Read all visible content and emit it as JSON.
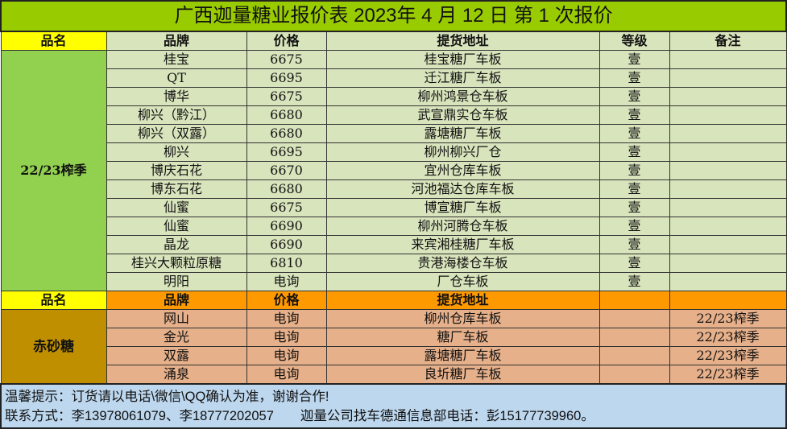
{
  "title": "广西迦量糖业报价表 2023年 4 月 12 日 第 1 次报价",
  "header": {
    "name": "品名",
    "brand": "品牌",
    "price": "价格",
    "address": "提货地址",
    "grade": "等级",
    "note": "备注"
  },
  "group1": {
    "category": "22/23榨季",
    "rows": [
      [
        "桂宝",
        "6675",
        "桂宝糖厂车板",
        "壹",
        ""
      ],
      [
        "QT",
        "6695",
        "迁江糖厂车板",
        "壹",
        ""
      ],
      [
        "博华",
        "6675",
        "柳州鸿景仓车板",
        "壹",
        ""
      ],
      [
        "柳兴（黔江）",
        "6680",
        "武宣鼎实仓车板",
        "壹",
        ""
      ],
      [
        "柳兴（双露）",
        "6680",
        "露塘糖厂车板",
        "壹",
        ""
      ],
      [
        "柳兴",
        "6695",
        "柳州柳兴厂仓",
        "壹",
        ""
      ],
      [
        "博庆石花",
        "6670",
        "宜州仓库车板",
        "壹",
        ""
      ],
      [
        "博东石花",
        "6680",
        "河池福达仓库车板",
        "壹",
        ""
      ],
      [
        "仙蜜",
        "6675",
        "博宣糖厂车板",
        "壹",
        ""
      ],
      [
        "仙蜜",
        "6690",
        "柳州河腾仓车板",
        "壹",
        ""
      ],
      [
        "晶龙",
        "6690",
        "来宾湘桂糖厂车板",
        "壹",
        ""
      ],
      [
        "桂兴大颗粒原糖",
        "6810",
        "贵港海楼仓车板",
        "壹",
        ""
      ],
      [
        "明阳",
        "电询",
        "厂仓车板",
        "壹",
        ""
      ]
    ]
  },
  "header2": {
    "name": "品名",
    "brand": "品牌",
    "price": "价格",
    "address": "提货地址"
  },
  "group2": {
    "category": "赤砂糖",
    "rows": [
      [
        "网山",
        "电询",
        "柳州仓库车板",
        "",
        "22/23榨季"
      ],
      [
        "金光",
        "电询",
        "糖厂车板",
        "",
        "22/23榨季"
      ],
      [
        "双露",
        "电询",
        "露塘糖厂车板",
        "",
        "22/23榨季"
      ],
      [
        "涌泉",
        "电询",
        "良圻糖厂车板",
        "",
        "22/23榨季"
      ]
    ]
  },
  "footer": {
    "line1": "温馨提示：订货请以电话\\微信\\QQ确认为准，谢谢合作!",
    "line2": "联系方式：李13978061079、李18777202057　　迦量公司找车德通信息部电话：彭15177739960。"
  }
}
